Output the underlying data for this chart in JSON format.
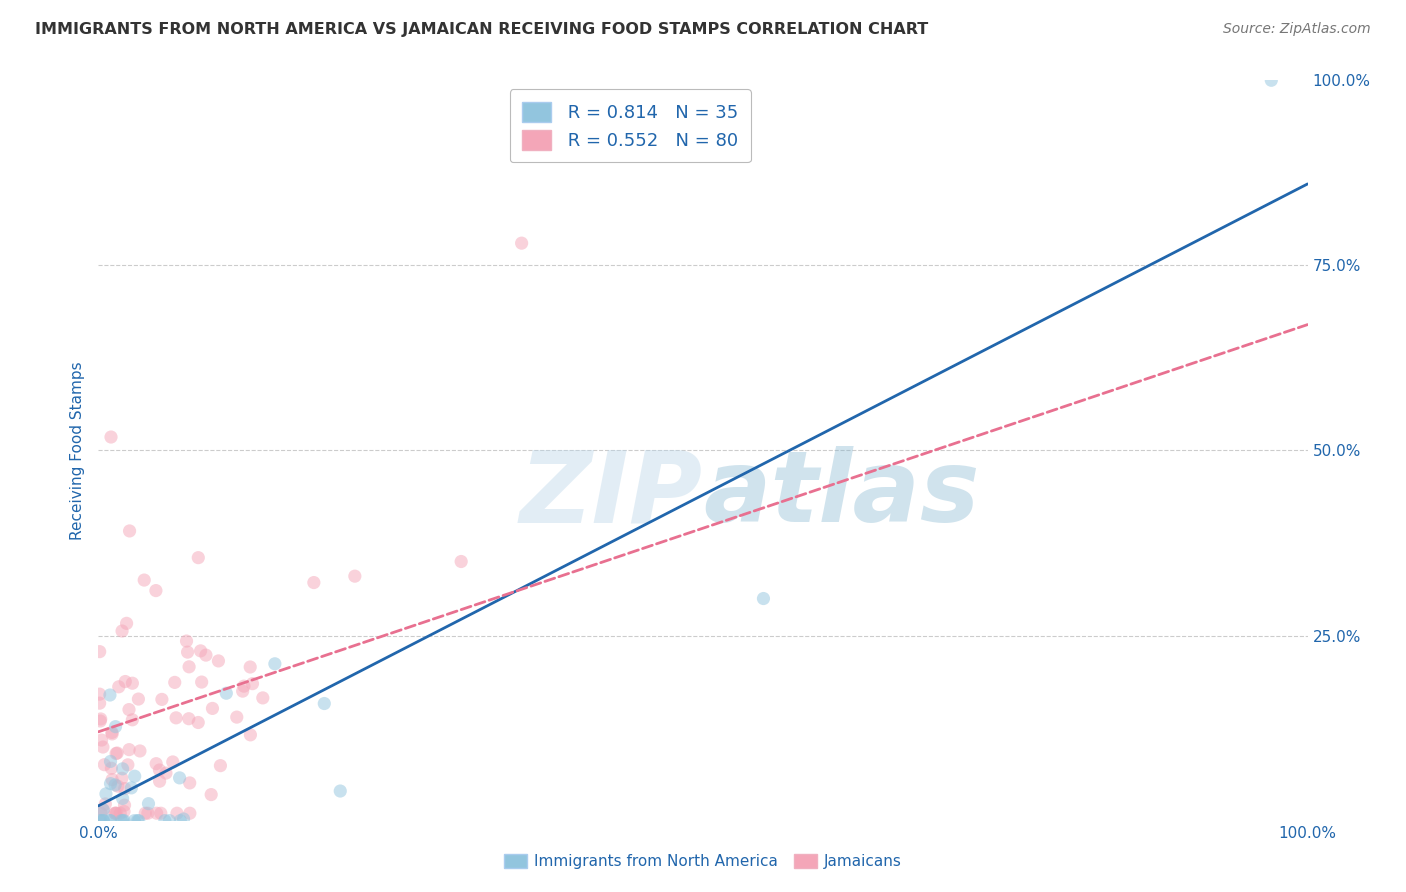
{
  "title": "IMMIGRANTS FROM NORTH AMERICA VS JAMAICAN RECEIVING FOOD STAMPS CORRELATION CHART",
  "source": "Source: ZipAtlas.com",
  "ylabel": "Receiving Food Stamps",
  "watermark_zip": "ZIP",
  "watermark_atlas": "atlas",
  "blue_R": 0.814,
  "blue_N": 35,
  "pink_R": 0.552,
  "pink_N": 80,
  "blue_color": "#92c5de",
  "pink_color": "#f4a6b8",
  "blue_line_color": "#2166ac",
  "pink_line_color": "#e87090",
  "title_color": "#333333",
  "source_color": "#777777",
  "axis_label_color": "#2166ac",
  "legend_text_color": "#2166ac",
  "legend_N_color": "#e03030",
  "background_color": "#ffffff",
  "grid_color": "#cccccc",
  "xlim": [
    0.0,
    1.0
  ],
  "ylim": [
    0.0,
    1.0
  ],
  "marker_size": 90,
  "marker_alpha": 0.5,
  "line_width": 2.0,
  "blue_intercept": -0.04,
  "blue_slope": 0.88,
  "pink_intercept": 0.08,
  "pink_slope": 0.7
}
